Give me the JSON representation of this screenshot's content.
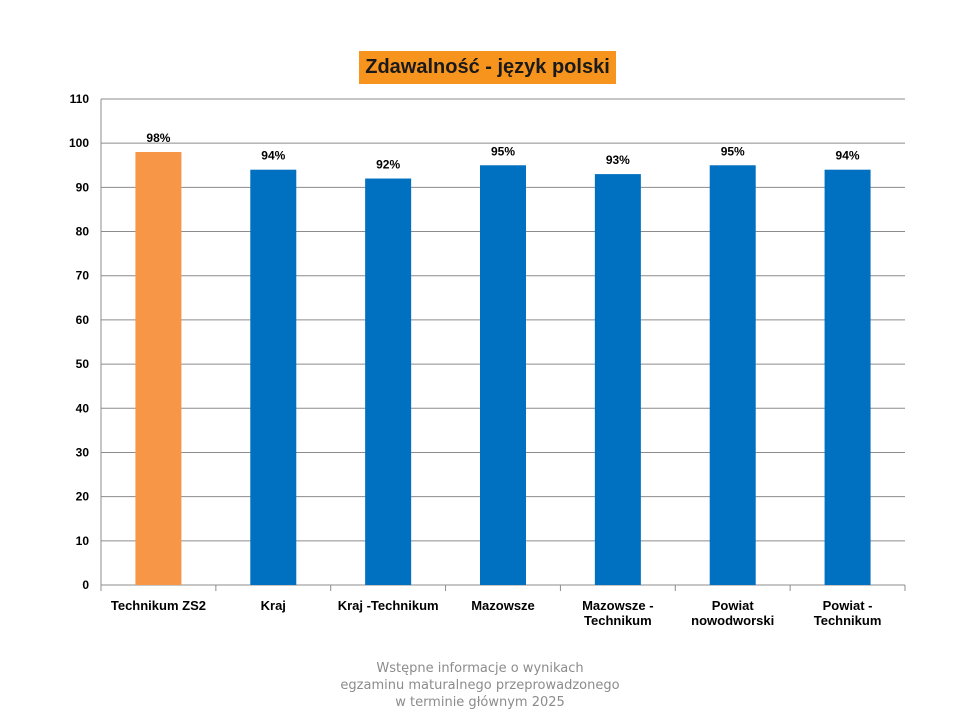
{
  "title": "Zdawalność - język polski",
  "chart_data": {
    "type": "bar",
    "title": "Zdawalność - język polski",
    "categories": [
      [
        "Technikum ZS2"
      ],
      [
        "Kraj"
      ],
      [
        "Kraj -Technikum"
      ],
      [
        "Mazowsze"
      ],
      [
        "Mazowsze -",
        "Technikum"
      ],
      [
        "Powiat",
        "nowodworski"
      ],
      [
        "Powiat -",
        "Technikum"
      ]
    ],
    "values": [
      98,
      94,
      92,
      95,
      93,
      95,
      94
    ],
    "data_labels": [
      "98%",
      "94%",
      "92%",
      "95%",
      "93%",
      "95%",
      "94%"
    ],
    "colors": [
      "#f79646",
      "#0070c0",
      "#0070c0",
      "#0070c0",
      "#0070c0",
      "#0070c0",
      "#0070c0"
    ],
    "ylim": [
      0,
      110
    ],
    "yticks": [
      0,
      10,
      20,
      30,
      40,
      50,
      60,
      70,
      80,
      90,
      100,
      110
    ],
    "grid": true,
    "legend": "none"
  },
  "footer": {
    "line1": "Wstępne informacje o wynikach",
    "line2": "egzaminu maturalnego przeprowadzonego",
    "line3": "w terminie głównym 2025"
  }
}
